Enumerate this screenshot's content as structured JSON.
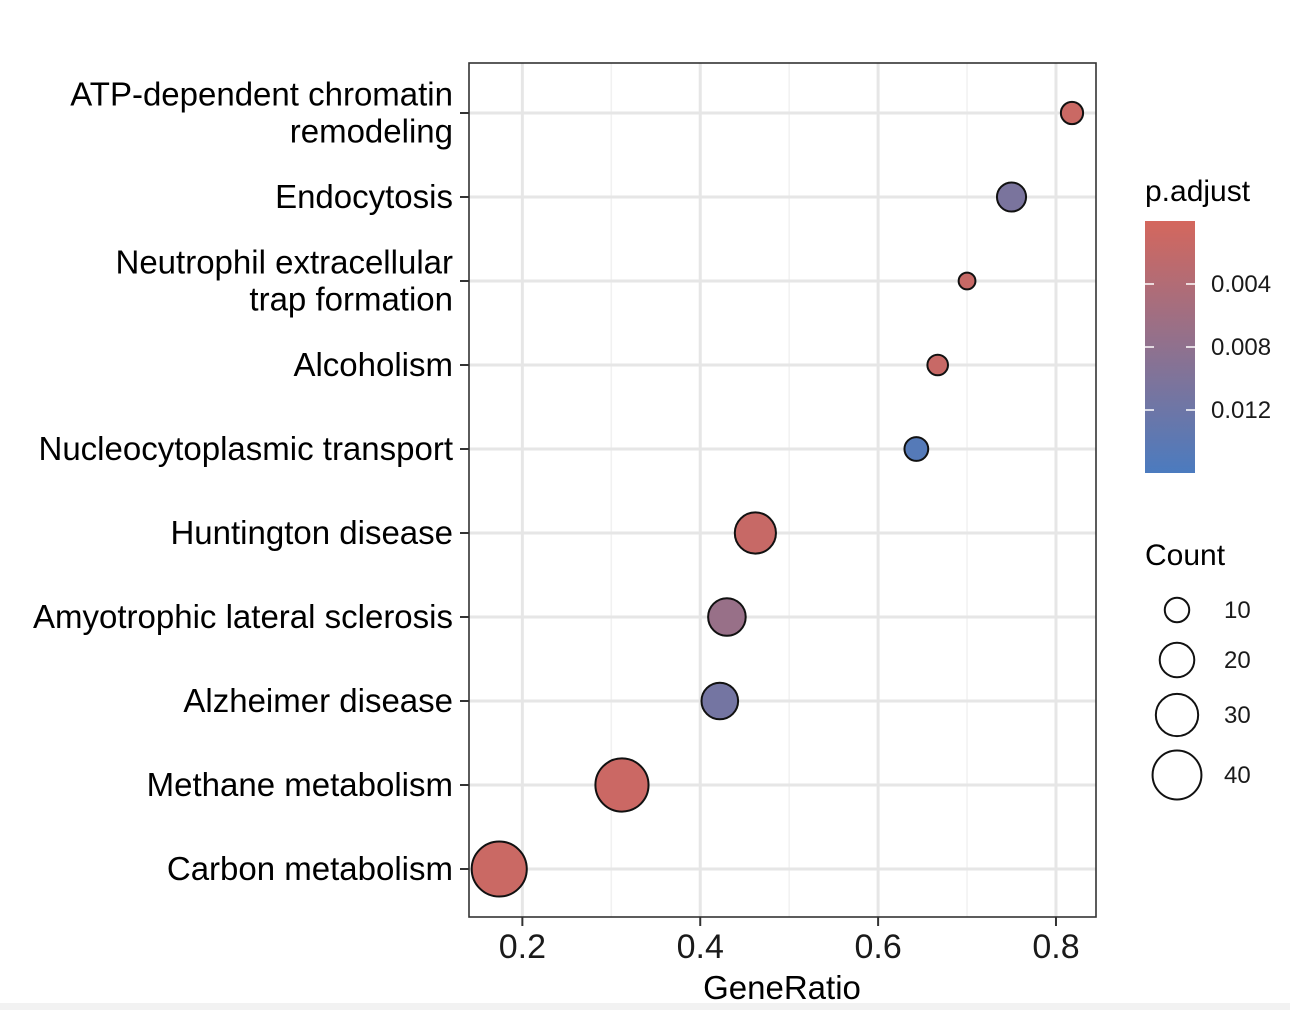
{
  "chart_data": {
    "type": "scatter",
    "xlabel": "GeneRatio",
    "ylabel": "",
    "xlim": [
      0.14,
      0.845
    ],
    "x_ticks": [
      "0.2",
      "0.4",
      "0.6",
      "0.8"
    ],
    "grid": true,
    "categories": [
      "ATP-dependent chromatin remodeling",
      "Endocytosis",
      "Neutrophil extracellular trap formation",
      "Alcoholism",
      "Nucleocytoplasmic transport",
      "Huntington disease",
      "Amyotrophic lateral sclerosis",
      "Alzheimer disease",
      "Methane metabolism",
      "Carbon metabolism"
    ],
    "category_label_lines": [
      [
        "ATP-dependent chromatin",
        "remodeling"
      ],
      [
        "Endocytosis"
      ],
      [
        "Neutrophil extracellular",
        "trap formation"
      ],
      [
        "Alcoholism"
      ],
      [
        "Nucleocytoplasmic transport"
      ],
      [
        "Huntington disease"
      ],
      [
        "Amyotrophic lateral sclerosis"
      ],
      [
        "Alzheimer disease"
      ],
      [
        "Methane metabolism"
      ],
      [
        "Carbon metabolism"
      ]
    ],
    "points": [
      {
        "category": "ATP-dependent chromatin remodeling",
        "gene_ratio": 0.818,
        "count": 7,
        "p_adjust": 0.0012
      },
      {
        "category": "Endocytosis",
        "gene_ratio": 0.75,
        "count": 12,
        "p_adjust": 0.0105
      },
      {
        "category": "Neutrophil extracellular trap formation",
        "gene_ratio": 0.7,
        "count": 4,
        "p_adjust": 0.0015
      },
      {
        "category": "Alcoholism",
        "gene_ratio": 0.667,
        "count": 6,
        "p_adjust": 0.0014
      },
      {
        "category": "Nucleocytoplasmic transport",
        "gene_ratio": 0.643,
        "count": 8,
        "p_adjust": 0.0148
      },
      {
        "category": "Huntington disease",
        "gene_ratio": 0.462,
        "count": 24,
        "p_adjust": 0.0015
      },
      {
        "category": "Amyotrophic lateral sclerosis",
        "gene_ratio": 0.43,
        "count": 20,
        "p_adjust": 0.007
      },
      {
        "category": "Alzheimer disease",
        "gene_ratio": 0.422,
        "count": 19,
        "p_adjust": 0.0112
      },
      {
        "category": "Methane metabolism",
        "gene_ratio": 0.312,
        "count": 40,
        "p_adjust": 0.0011
      },
      {
        "category": "Carbon metabolism",
        "gene_ratio": 0.174,
        "count": 43,
        "p_adjust": 0.0012
      }
    ],
    "color_legend": {
      "title": "p.adjust",
      "range": [
        0.0,
        0.016
      ],
      "ticks": [
        "0.004",
        "0.008",
        "0.012"
      ],
      "low_color": "#d4675d",
      "high_color": "#4b7bbf"
    },
    "size_legend": {
      "title": "Count",
      "values": [
        10,
        20,
        30,
        40
      ],
      "labels": [
        "10",
        "20",
        "30",
        "40"
      ]
    },
    "colors": {
      "panel_border": "#333333",
      "grid_major": "#e6e6e6",
      "grid_minor": "#f1f1f1",
      "point_stroke": "#111111"
    }
  }
}
